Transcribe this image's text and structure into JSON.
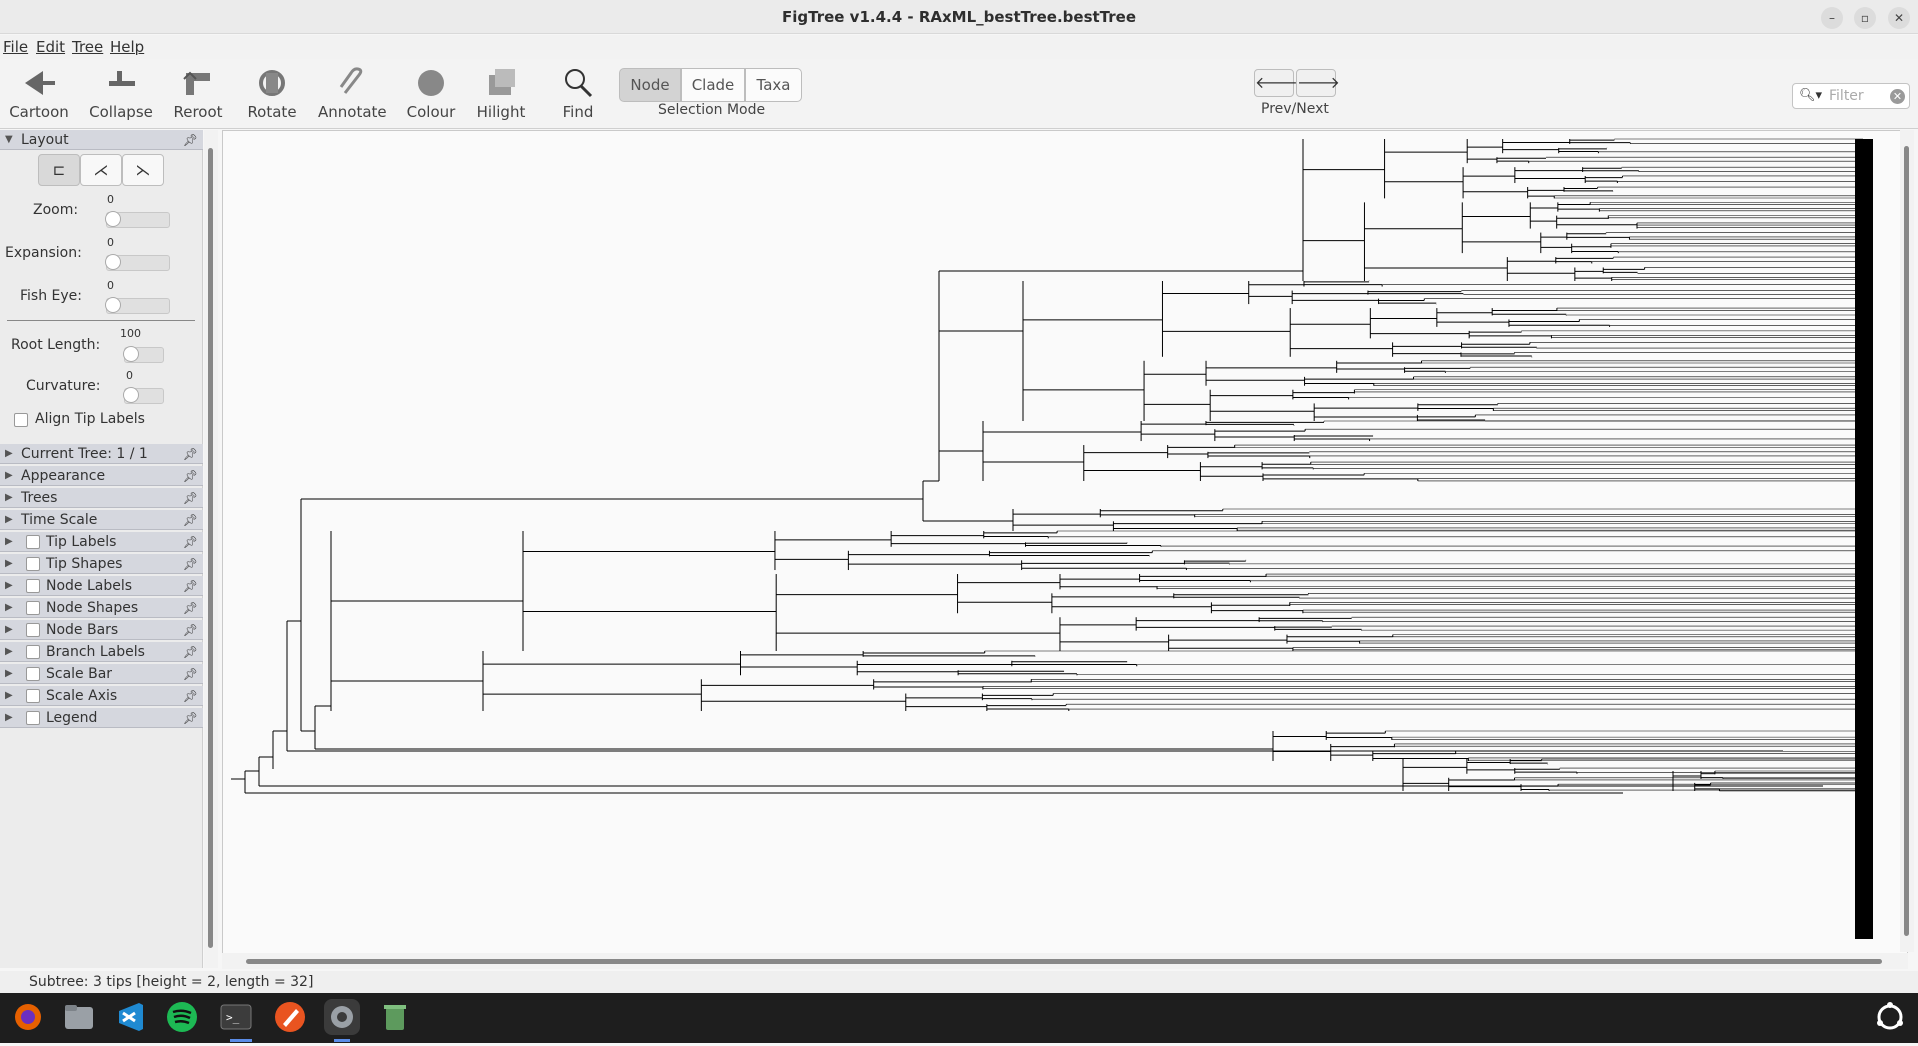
{
  "window": {
    "title": "FigTree v1.4.4 - RAxML_bestTree.bestTree"
  },
  "menu": [
    "File",
    "Edit",
    "Tree",
    "Help"
  ],
  "toolbar": {
    "tools": [
      "Cartoon",
      "Collapse",
      "Reroot",
      "Rotate",
      "Annotate",
      "Colour",
      "Hilight",
      "Find"
    ],
    "selection_modes": [
      "Node",
      "Clade",
      "Taxa"
    ],
    "selection_active": "Node",
    "selection_label": "Selection Mode",
    "prevnext_label": "Prev/Next",
    "filter_placeholder": "Filter"
  },
  "panel": {
    "layout_title": "Layout",
    "zoom_label": "Zoom:",
    "zoom_value": "0",
    "expansion_label": "Expansion:",
    "expansion_value": "0",
    "fisheye_label": "Fish Eye:",
    "fisheye_value": "0",
    "rootlength_label": "Root Length:",
    "rootlength_value": "100",
    "curvature_label": "Curvature:",
    "curvature_value": "0",
    "align_tip_labels": "Align Tip Labels",
    "sections_plain": [
      "Current Tree: 1 / 1",
      "Appearance",
      "Trees",
      "Time Scale"
    ],
    "sections_checkbox": [
      "Tip Labels",
      "Tip Shapes",
      "Node Labels",
      "Node Shapes",
      "Node Bars",
      "Branch Labels",
      "Scale Bar",
      "Scale Axis",
      "Legend"
    ]
  },
  "status": {
    "text": "Subtree: 3 tips [height = 2, length = 32]"
  },
  "taskbar": {
    "apps": [
      "firefox-icon",
      "files-icon",
      "vscode-icon",
      "spotify-icon",
      "terminal-icon",
      "inkscape-icon",
      "settings-icon",
      "trash-icon"
    ]
  },
  "colors": {
    "accent": "#d3d3d3",
    "tree": "#000000",
    "taskbar": "#1e1e1e"
  }
}
